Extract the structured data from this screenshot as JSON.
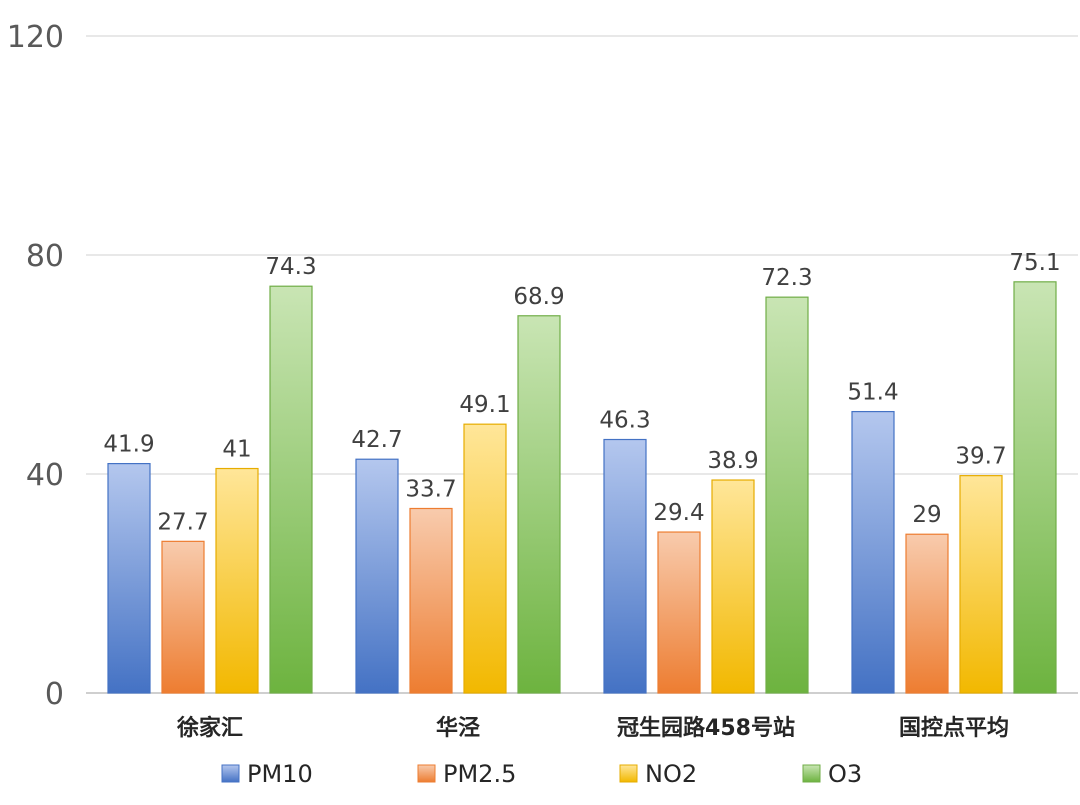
{
  "chart_data": {
    "type": "bar",
    "title": "",
    "xlabel": "",
    "ylabel": "",
    "ylim": [
      0,
      120
    ],
    "yticks": [
      0,
      40,
      80,
      120
    ],
    "grid": true,
    "legend_position": "bottom",
    "categories": [
      "徐家汇",
      "华泾",
      "冠生园路458号站",
      "国控点平均"
    ],
    "series": [
      {
        "name": "PM10",
        "values": [
          41.9,
          42.7,
          46.3,
          51.4
        ],
        "labels": [
          "41.9",
          "42.7",
          "46.3",
          "51.4"
        ],
        "color_top": "#b4c7ee",
        "color_bottom": "#4472c4",
        "stroke": "#4472c4"
      },
      {
        "name": "PM2.5",
        "values": [
          27.7,
          33.7,
          29.4,
          29
        ],
        "labels": [
          "27.7",
          "33.7",
          "29.4",
          "29"
        ],
        "color_top": "#f8cbad",
        "color_bottom": "#ed7d31",
        "stroke": "#ed7d31"
      },
      {
        "name": "NO2",
        "values": [
          41,
          49.1,
          38.9,
          39.7
        ],
        "labels": [
          "41",
          "49.1",
          "38.9",
          "39.7"
        ],
        "color_top": "#ffe699",
        "color_bottom": "#f2b800",
        "stroke": "#e6ac00"
      },
      {
        "name": "O3",
        "values": [
          74.3,
          68.9,
          72.3,
          75.1
        ],
        "labels": [
          "74.3",
          "68.9",
          "72.3",
          "75.1"
        ],
        "color_top": "#c9e5b4",
        "color_bottom": "#6db33f",
        "stroke": "#70ad47"
      }
    ]
  }
}
